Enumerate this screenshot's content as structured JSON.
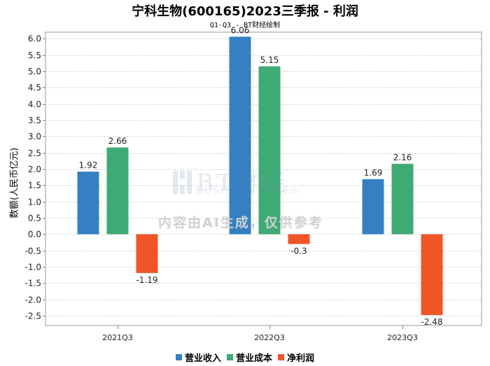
{
  "chart_data": {
    "type": "bar",
    "title": "宁科生物(600165)2023三季报 - 利润",
    "subtitle": "Q1-Q3 - BT财经绘制",
    "ylabel": "数额(人民币亿元)",
    "xlabel": "",
    "categories": [
      "2021Q3",
      "2022Q3",
      "2023Q3"
    ],
    "series": [
      {
        "name": "营业收入",
        "color": "#3580c2",
        "values": [
          1.92,
          6.06,
          1.69
        ]
      },
      {
        "name": "营业成本",
        "color": "#3eab74",
        "values": [
          2.66,
          5.15,
          2.16
        ]
      },
      {
        "name": "净利润",
        "color": "#f05528",
        "values": [
          -1.19,
          -0.3,
          -2.48
        ]
      }
    ],
    "ylim": [
      -2.8,
      6.2
    ],
    "yticks": [
      6.0,
      5.5,
      5.0,
      4.5,
      4.0,
      3.5,
      3.0,
      2.5,
      2.0,
      1.5,
      1.0,
      0.5,
      0.0,
      -0.5,
      -1.0,
      -1.5,
      -2.0,
      -2.5
    ],
    "grid": true,
    "legend": "bottom-center"
  },
  "watermark": {
    "brand": "BT财经",
    "sub": "BUSINESS TIMES",
    "note": "内容由AI生成，仅供参考"
  }
}
